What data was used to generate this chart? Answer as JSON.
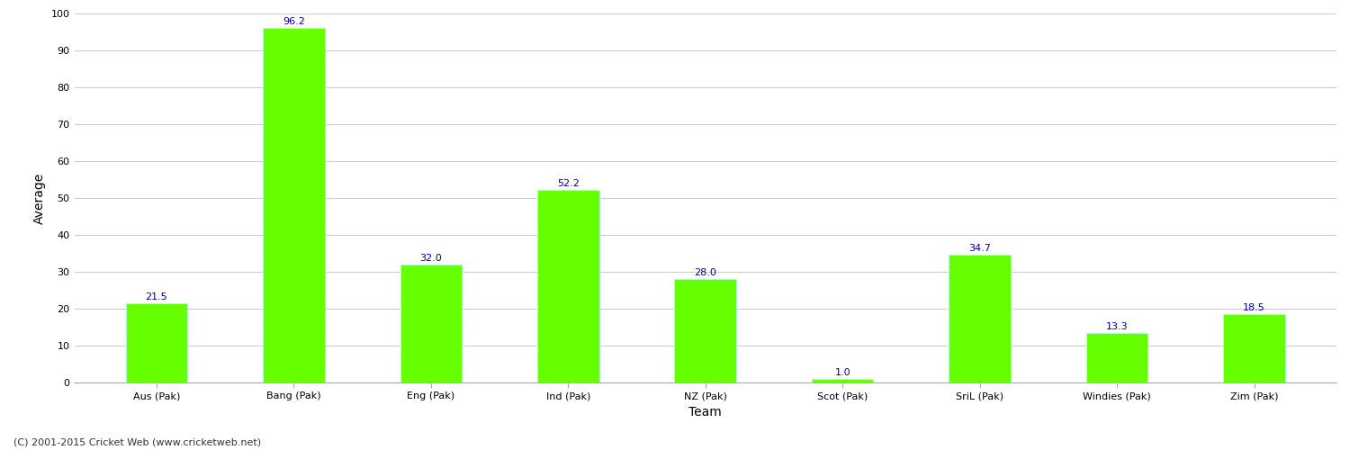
{
  "categories": [
    "Aus (Pak)",
    "Bang (Pak)",
    "Eng (Pak)",
    "Ind (Pak)",
    "NZ (Pak)",
    "Scot (Pak)",
    "SriL (Pak)",
    "Windies (Pak)",
    "Zim (Pak)"
  ],
  "values": [
    21.5,
    96.2,
    32.0,
    52.2,
    28.0,
    1.0,
    34.7,
    13.3,
    18.5
  ],
  "bar_color": "#66ff00",
  "bar_edge_color": "#aaffcc",
  "label_color": "#000099",
  "xlabel": "Team",
  "ylabel": "Average",
  "ylim": [
    0,
    100
  ],
  "yticks": [
    0,
    10,
    20,
    30,
    40,
    50,
    60,
    70,
    80,
    90,
    100
  ],
  "grid_color": "#cccccc",
  "background_color": "#ffffff",
  "label_fontsize": 8,
  "axis_label_fontsize": 10,
  "tick_fontsize": 8,
  "footer": "(C) 2001-2015 Cricket Web (www.cricketweb.net)",
  "bar_width": 0.45,
  "spine_color": "#aaaaaa"
}
